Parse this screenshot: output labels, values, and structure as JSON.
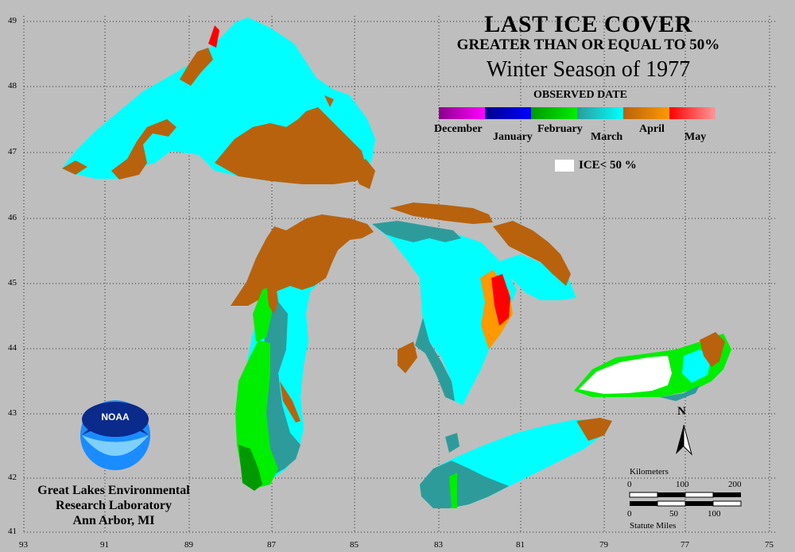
{
  "title": {
    "line1": "LAST ICE COVER",
    "line2": "GREATER THAN OR EQUAL TO 50%",
    "line3": "Winter Season of 1977"
  },
  "legend": {
    "heading": "OBSERVED DATE",
    "months": [
      {
        "label": "December",
        "colors": [
          "#8b008b",
          "#ff00ff"
        ]
      },
      {
        "label": "January",
        "colors": [
          "#00008b",
          "#0000ff"
        ]
      },
      {
        "label": "February",
        "colors": [
          "#009900",
          "#00ee00"
        ]
      },
      {
        "label": "March",
        "colors": [
          "#2e9b9b",
          "#00ffff"
        ]
      },
      {
        "label": "April",
        "colors": [
          "#b8620e",
          "#ff9900"
        ]
      },
      {
        "label": "May",
        "colors": [
          "#ff0000",
          "#ff9999"
        ]
      }
    ],
    "ice_lt50_label": "ICE< 50 %"
  },
  "axes": {
    "lat_labels": [
      "49",
      "48",
      "47",
      "46",
      "45",
      "44",
      "43",
      "42",
      "41"
    ],
    "lon_labels": [
      "93",
      "91",
      "89",
      "87",
      "85",
      "83",
      "81",
      "79",
      "77",
      "75"
    ]
  },
  "north_arrow": {
    "label": "N"
  },
  "scale_bar": {
    "km_title": "Kilometers",
    "km_ticks": [
      "0",
      "100",
      "200"
    ],
    "mi_ticks": [
      "0",
      "50",
      "100"
    ],
    "mi_title": "Statute Miles"
  },
  "logo": {
    "text": "NOAA"
  },
  "credit": {
    "line1": "Great Lakes Environmental",
    "line2": "Research Laboratory",
    "line3": "Ann Arbor, MI"
  },
  "colors": {
    "background": "#bebebe",
    "land": "#bebebe",
    "march_cyan": "#00ffff",
    "march_teal": "#2e9b9b",
    "april_brown": "#b8620e",
    "april_orange": "#ff9900",
    "feb_green": "#00ee00",
    "feb_dark_green": "#009900",
    "may_red": "#ff0000",
    "ice_lt50": "#ffffff"
  }
}
